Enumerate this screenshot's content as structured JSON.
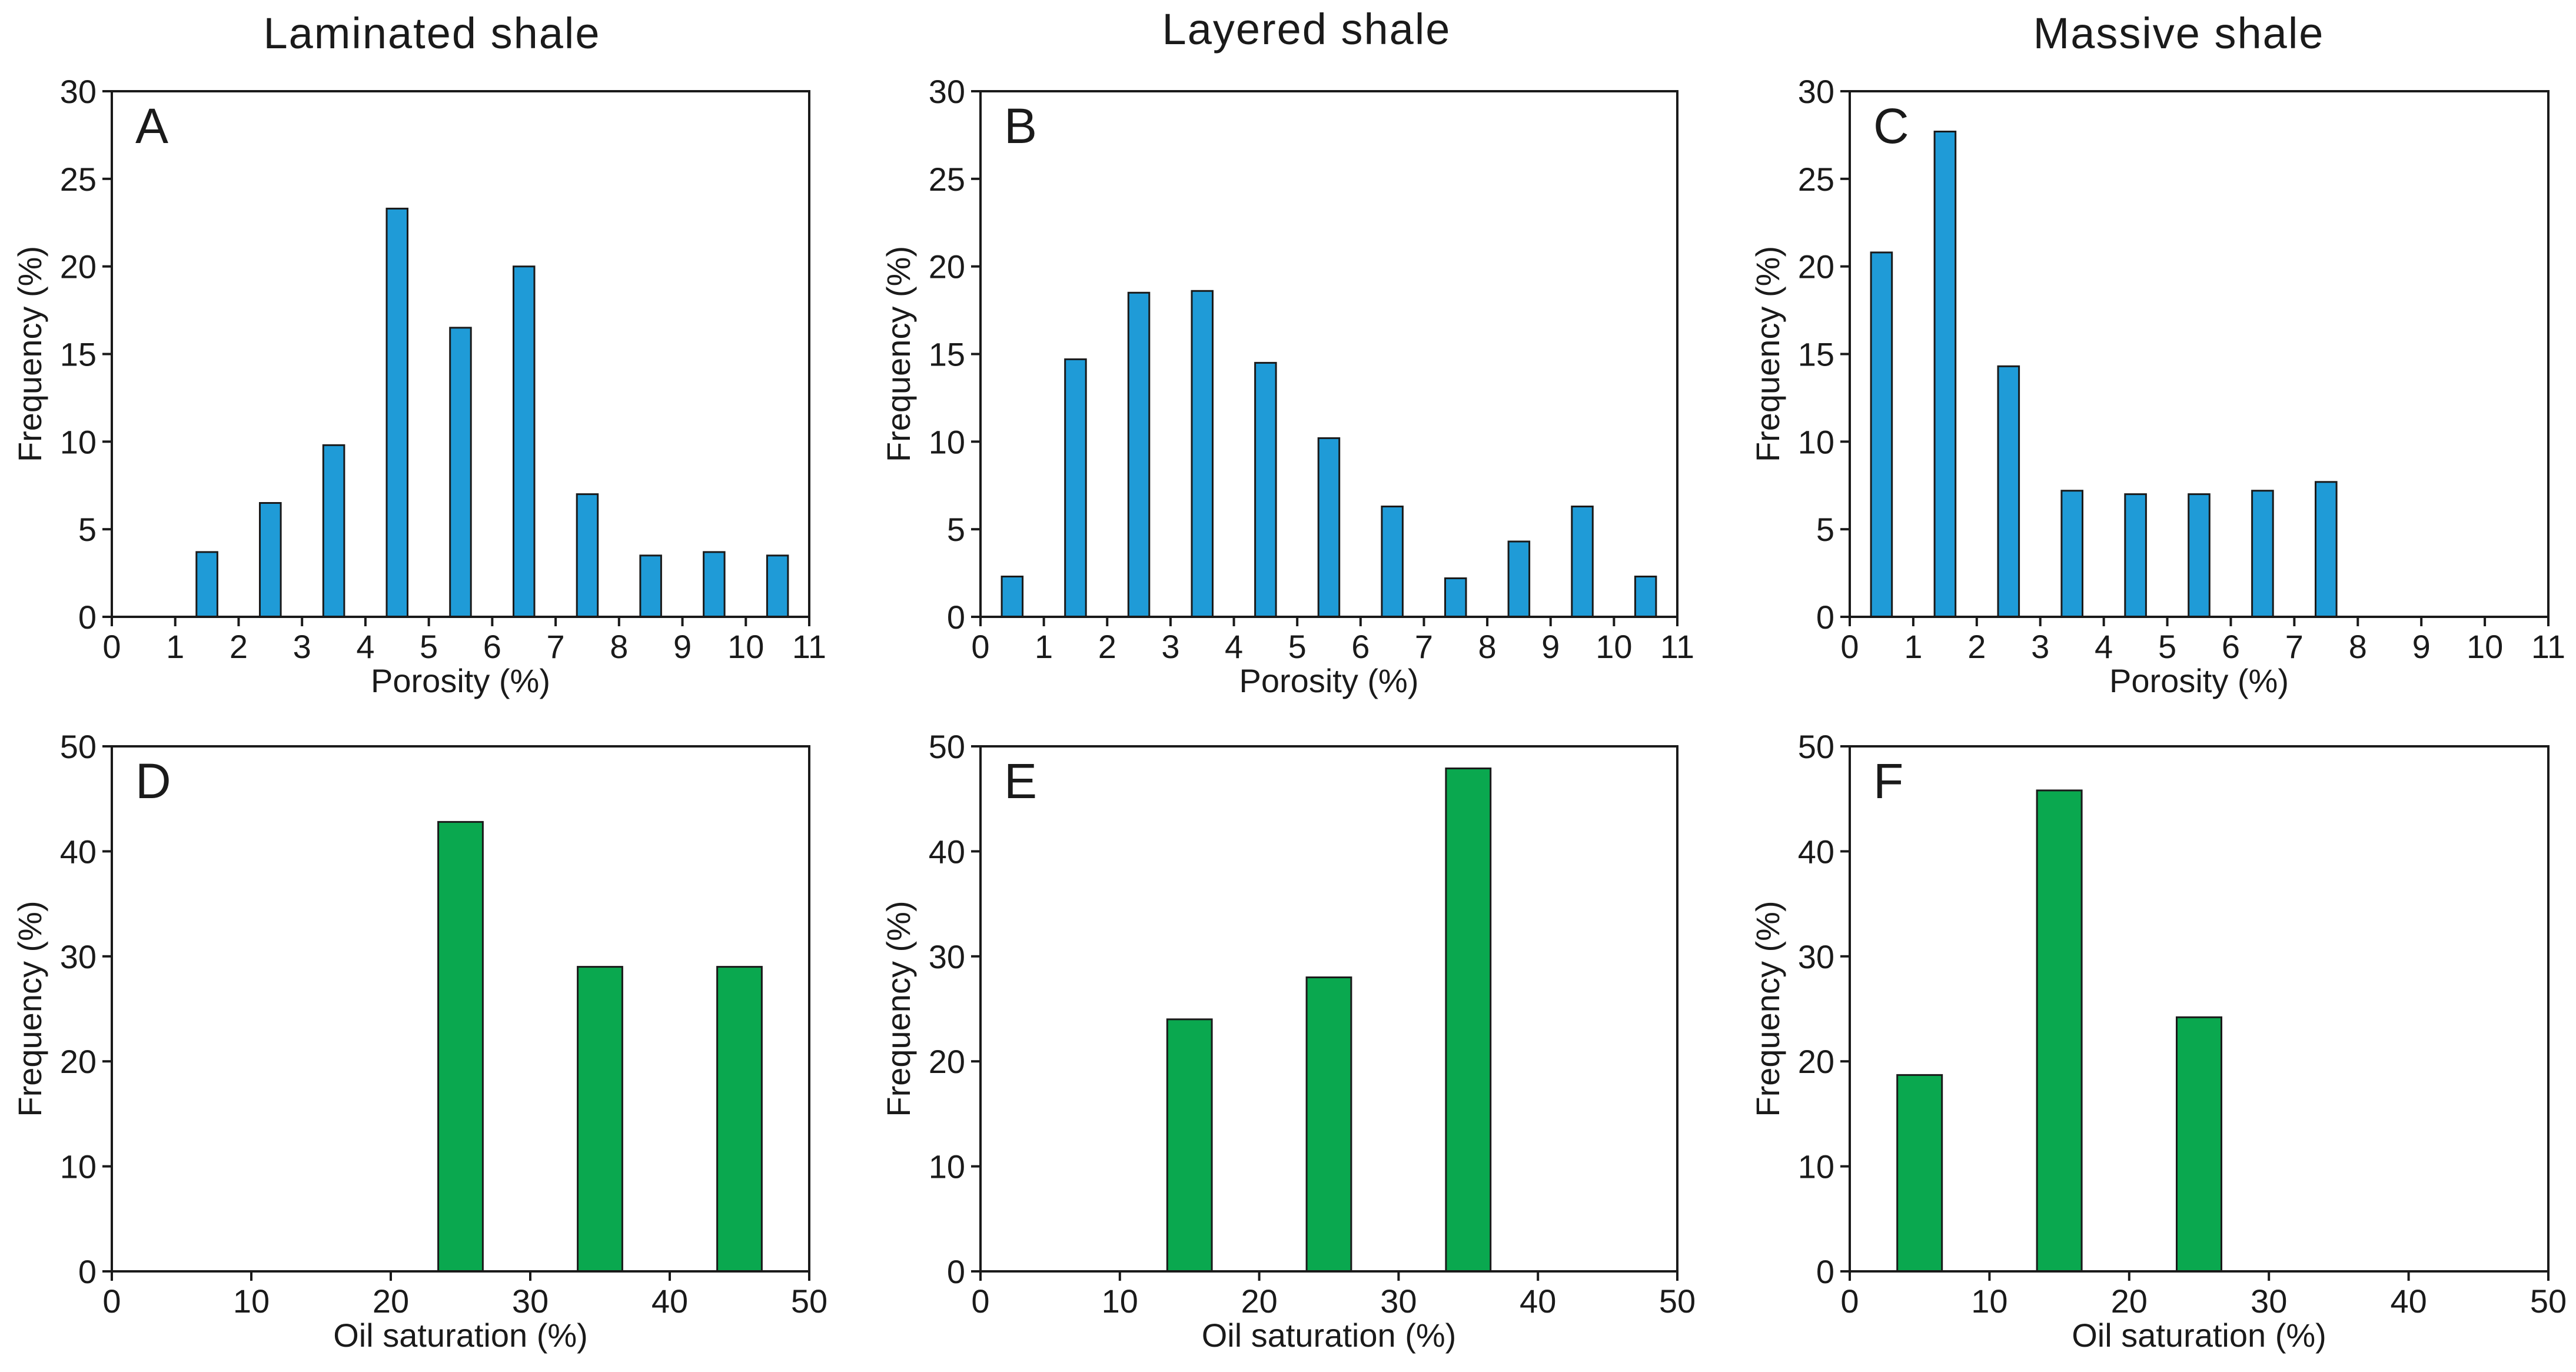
{
  "columns": [
    "Laminated shale",
    "Layered shale",
    "Massive shale"
  ],
  "colors": {
    "porosity_bar": "#1f9bd7",
    "saturation_bar": "#0aa84f",
    "axis": "#1a1a1a"
  },
  "chart_data": [
    {
      "type": "bar",
      "panel": "A",
      "column_title": "Laminated shale",
      "xlabel": "Porosity (%)",
      "ylabel": "Frequency (%)",
      "xlim": [
        0,
        11
      ],
      "ylim": [
        0,
        30
      ],
      "xticks": [
        0,
        1,
        2,
        3,
        4,
        5,
        6,
        7,
        8,
        9,
        10,
        11
      ],
      "yticks": [
        0,
        5,
        10,
        15,
        20,
        25,
        30
      ],
      "bar_width": 0.33,
      "color_key": "porosity_bar",
      "x": [
        1.5,
        2.5,
        3.5,
        4.5,
        5.5,
        6.5,
        7.5,
        8.5,
        9.5,
        10.5
      ],
      "values": [
        3.7,
        6.5,
        9.8,
        23.3,
        16.5,
        20.0,
        7.0,
        3.5,
        3.7,
        3.5
      ]
    },
    {
      "type": "bar",
      "panel": "B",
      "column_title": "Layered shale",
      "xlabel": "Porosity (%)",
      "ylabel": "Frequency (%)",
      "xlim": [
        0,
        11
      ],
      "ylim": [
        0,
        30
      ],
      "xticks": [
        0,
        1,
        2,
        3,
        4,
        5,
        6,
        7,
        8,
        9,
        10,
        11
      ],
      "yticks": [
        0,
        5,
        10,
        15,
        20,
        25,
        30
      ],
      "bar_width": 0.33,
      "color_key": "porosity_bar",
      "x": [
        0.5,
        1.5,
        2.5,
        3.5,
        4.5,
        5.5,
        6.5,
        7.5,
        8.5,
        9.5,
        10.5
      ],
      "values": [
        2.3,
        14.7,
        18.5,
        18.6,
        14.5,
        10.2,
        6.3,
        2.2,
        4.3,
        6.3,
        2.3
      ]
    },
    {
      "type": "bar",
      "panel": "C",
      "column_title": "Massive shale",
      "xlabel": "Porosity (%)",
      "ylabel": "Frequency (%)",
      "xlim": [
        0,
        11
      ],
      "ylim": [
        0,
        30
      ],
      "xticks": [
        0,
        1,
        2,
        3,
        4,
        5,
        6,
        7,
        8,
        9,
        10,
        11
      ],
      "yticks": [
        0,
        5,
        10,
        15,
        20,
        25,
        30
      ],
      "bar_width": 0.33,
      "color_key": "porosity_bar",
      "x": [
        0.5,
        1.5,
        2.5,
        3.5,
        4.5,
        5.5,
        6.5,
        7.5
      ],
      "values": [
        20.8,
        27.7,
        14.3,
        7.2,
        7.0,
        7.0,
        7.2,
        7.7
      ]
    },
    {
      "type": "bar",
      "panel": "D",
      "column_title": "Laminated shale",
      "xlabel": "Oil saturation (%)",
      "ylabel": "Frequency (%)",
      "xlim": [
        0,
        50
      ],
      "ylim": [
        0,
        50
      ],
      "xticks": [
        0,
        10,
        20,
        30,
        40,
        50
      ],
      "yticks": [
        0,
        10,
        20,
        30,
        40,
        50
      ],
      "bar_width": 3.2,
      "color_key": "saturation_bar",
      "x": [
        25,
        35,
        45
      ],
      "values": [
        42.8,
        29.0,
        29.0
      ]
    },
    {
      "type": "bar",
      "panel": "E",
      "column_title": "Layered shale",
      "xlabel": "Oil saturation (%)",
      "ylabel": "Frequency (%)",
      "xlim": [
        0,
        50
      ],
      "ylim": [
        0,
        50
      ],
      "xticks": [
        0,
        10,
        20,
        30,
        40,
        50
      ],
      "yticks": [
        0,
        10,
        20,
        30,
        40,
        50
      ],
      "bar_width": 3.2,
      "color_key": "saturation_bar",
      "x": [
        15,
        25,
        35
      ],
      "values": [
        24.0,
        28.0,
        47.9
      ]
    },
    {
      "type": "bar",
      "panel": "F",
      "column_title": "Massive shale",
      "xlabel": "Oil saturation (%)",
      "ylabel": "Frequency (%)",
      "xlim": [
        0,
        50
      ],
      "ylim": [
        0,
        50
      ],
      "xticks": [
        0,
        10,
        20,
        30,
        40,
        50
      ],
      "yticks": [
        0,
        10,
        20,
        30,
        40,
        50
      ],
      "bar_width": 3.2,
      "color_key": "saturation_bar",
      "x": [
        5,
        15,
        25
      ],
      "values": [
        18.7,
        45.8,
        24.2
      ]
    }
  ]
}
